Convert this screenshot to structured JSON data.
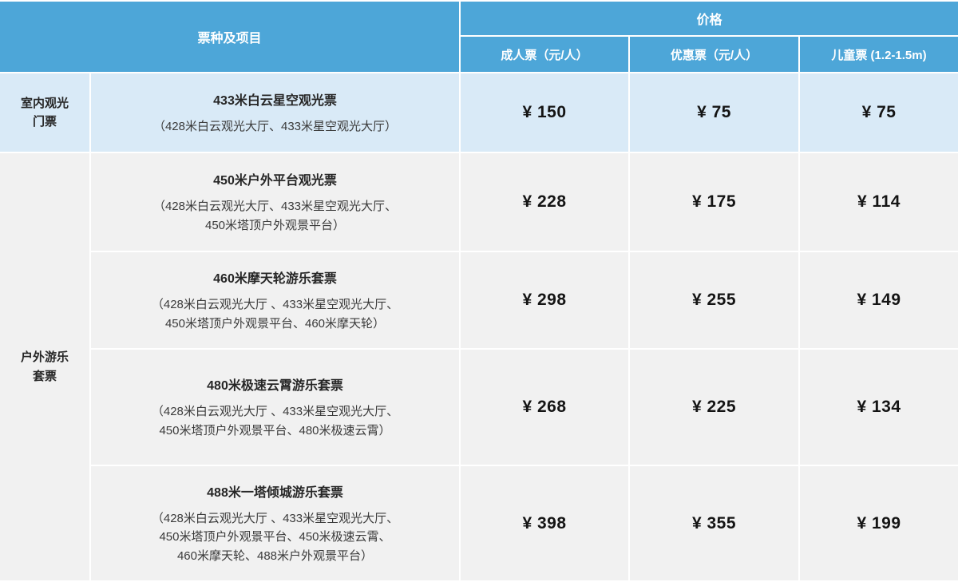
{
  "colors": {
    "header_blue": "#4DA6D8",
    "row_highlight_blue": "#D9EAF7",
    "row_gray": "#F1F1F1",
    "grid_line_white": "#FFFFFF",
    "header_text": "#FFFFFF",
    "body_text": "#262626"
  },
  "table": {
    "header": {
      "ticket_type_label": "票种及项目",
      "price_group_label": "价格",
      "adult_column": "成人票（元/人）",
      "discount_column": "优惠票（元/人）",
      "child_column": "儿童票 (1.2-1.5m)"
    },
    "categories": [
      {
        "name": "indoor-sightseeing-tickets",
        "line1": "室内观光",
        "line2": "门票"
      },
      {
        "name": "outdoor-amusement-packages",
        "line1": "户外游乐",
        "line2": "套票"
      }
    ],
    "rows": [
      {
        "title": "433米白云星空观光票",
        "subtitle_lines": [
          "（428米白云观光大厅、433米星空观光大厅）"
        ],
        "adult": "¥ 150",
        "discount": "¥ 75",
        "child": "¥ 75"
      },
      {
        "title": "450米户外平台观光票",
        "subtitle_lines": [
          "（428米白云观光大厅、433米星空观光大厅、",
          "450米塔顶户外观景平台）"
        ],
        "adult": "¥ 228",
        "discount": "¥ 175",
        "child": "¥ 114"
      },
      {
        "title": "460米摩天轮游乐套票",
        "subtitle_lines": [
          "（428米白云观光大厅 、433米星空观光大厅、",
          "450米塔顶户外观景平台、460米摩天轮）"
        ],
        "adult": "¥ 298",
        "discount": "¥ 255",
        "child": "¥ 149"
      },
      {
        "title": "480米极速云霄游乐套票",
        "subtitle_lines": [
          "（428米白云观光大厅 、433米星空观光大厅、",
          "450米塔顶户外观景平台、480米极速云霄）"
        ],
        "adult": "¥ 268",
        "discount": "¥ 225",
        "child": "¥ 134"
      },
      {
        "title": "488米一塔倾城游乐套票",
        "subtitle_lines": [
          "（428米白云观光大厅 、433米星空观光大厅、",
          "450米塔顶户外观景平台、450米极速云霄、",
          "460米摩天轮、488米户外观景平台）"
        ],
        "adult": "¥ 398",
        "discount": "¥ 355",
        "child": "¥ 199"
      }
    ]
  }
}
